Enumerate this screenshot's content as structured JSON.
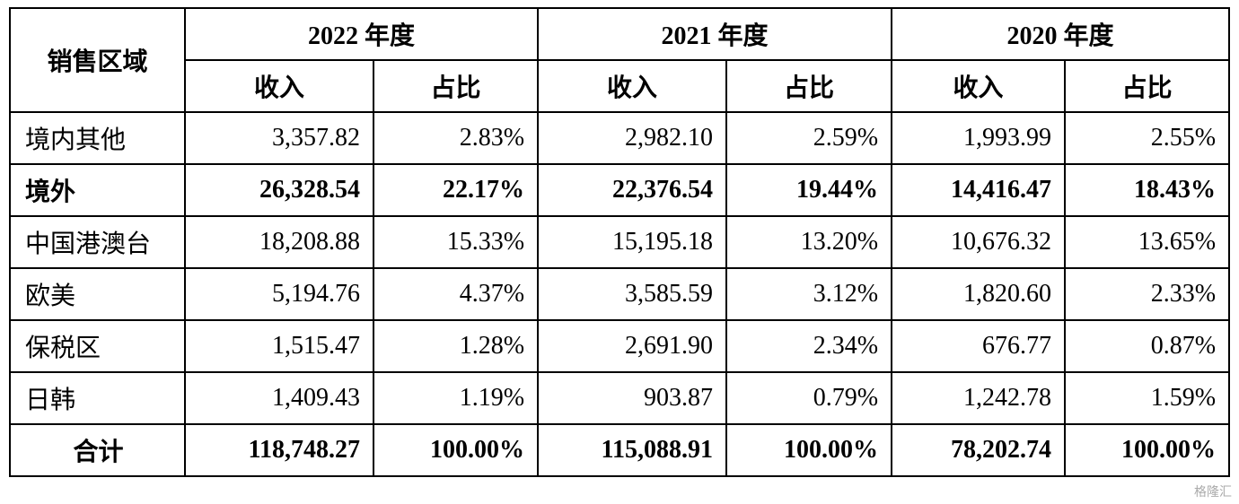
{
  "table": {
    "header": {
      "region": "销售区域",
      "years": [
        {
          "label": "2022 年度",
          "cols": [
            "收入",
            "占比"
          ]
        },
        {
          "label": "2021 年度",
          "cols": [
            "收入",
            "占比"
          ]
        },
        {
          "label": "2020 年度",
          "cols": [
            "收入",
            "占比"
          ]
        }
      ]
    },
    "rows": [
      {
        "label": "境内其他",
        "bold": false,
        "center": false,
        "cells": [
          "3,357.82",
          "2.83%",
          "2,982.10",
          "2.59%",
          "1,993.99",
          "2.55%"
        ]
      },
      {
        "label": "境外",
        "bold": true,
        "center": false,
        "cells": [
          "26,328.54",
          "22.17%",
          "22,376.54",
          "19.44%",
          "14,416.47",
          "18.43%"
        ]
      },
      {
        "label": "中国港澳台",
        "bold": false,
        "center": false,
        "cells": [
          "18,208.88",
          "15.33%",
          "15,195.18",
          "13.20%",
          "10,676.32",
          "13.65%"
        ]
      },
      {
        "label": "欧美",
        "bold": false,
        "center": false,
        "cells": [
          "5,194.76",
          "4.37%",
          "3,585.59",
          "3.12%",
          "1,820.60",
          "2.33%"
        ]
      },
      {
        "label": "保税区",
        "bold": false,
        "center": false,
        "cells": [
          "1,515.47",
          "1.28%",
          "2,691.90",
          "2.34%",
          "676.77",
          "0.87%"
        ]
      },
      {
        "label": "日韩",
        "bold": false,
        "center": false,
        "cells": [
          "1,409.43",
          "1.19%",
          "903.87",
          "0.79%",
          "1,242.78",
          "1.59%"
        ]
      },
      {
        "label": "合计",
        "bold": true,
        "center": true,
        "cells": [
          "118,748.27",
          "100.00%",
          "115,088.91",
          "100.00%",
          "78,202.74",
          "100.00%"
        ]
      }
    ]
  },
  "watermark": "格隆汇"
}
